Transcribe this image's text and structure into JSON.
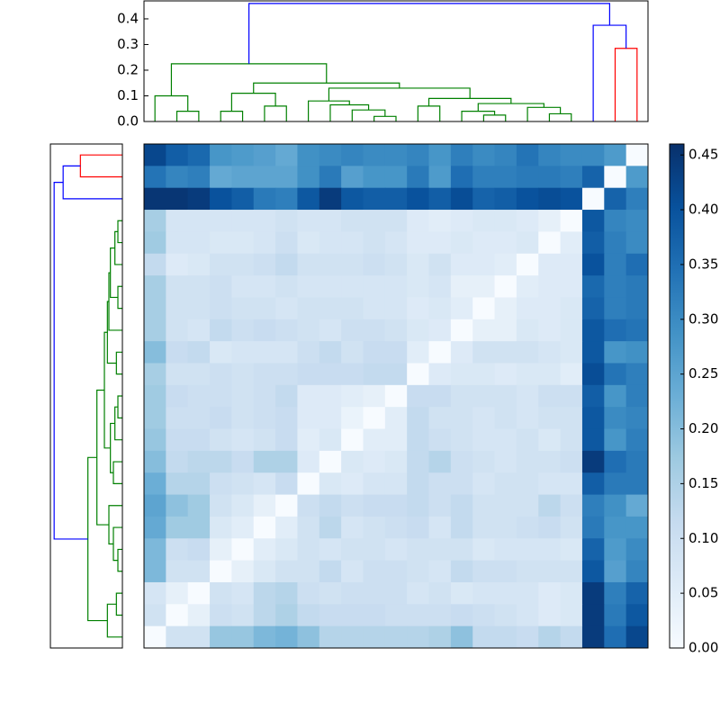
{
  "chart_data": [
    {
      "type": "dendrogram",
      "orientation": "top",
      "linkage": [
        [
          1,
          2,
          0.04
        ],
        [
          0,
          23,
          0.1
        ],
        [
          3,
          4,
          0.04
        ],
        [
          5,
          6,
          0.06
        ],
        [
          25,
          26,
          0.11
        ],
        [
          10,
          11,
          0.02
        ],
        [
          9,
          28,
          0.045
        ],
        [
          8,
          29,
          0.065
        ],
        [
          7,
          30,
          0.08
        ],
        [
          12,
          13,
          0.06
        ],
        [
          15,
          16,
          0.025
        ],
        [
          14,
          33,
          0.04
        ],
        [
          18,
          19,
          0.03
        ],
        [
          17,
          35,
          0.055
        ],
        [
          34,
          36,
          0.07
        ],
        [
          32,
          37,
          0.09
        ],
        [
          31,
          38,
          0.13
        ],
        [
          27,
          39,
          0.15
        ],
        [
          24,
          40,
          0.225
        ],
        [
          21,
          22,
          0.285
        ],
        [
          20,
          42,
          0.375
        ],
        [
          41,
          43,
          0.46
        ]
      ],
      "link_colors": [
        "#008000",
        "#008000",
        "#008000",
        "#008000",
        "#008000",
        "#008000",
        "#008000",
        "#008000",
        "#008000",
        "#008000",
        "#008000",
        "#008000",
        "#008000",
        "#008000",
        "#008000",
        "#008000",
        "#008000",
        "#008000",
        "#008000",
        "#ff0000",
        "#0000ff",
        "#0000ff"
      ],
      "ylim": [
        0,
        0.47
      ],
      "yticks": [
        {
          "value": 0,
          "label": "0.0"
        },
        0.1,
        0.2,
        0.3,
        0.4
      ]
    },
    {
      "type": "dendrogram",
      "orientation": "left",
      "linkage": [
        [
          3,
          4,
          0.03
        ],
        [
          5,
          23,
          0.05
        ],
        [
          6,
          7,
          0.03
        ],
        [
          24,
          25,
          0.08
        ],
        [
          8,
          26,
          0.09
        ],
        [
          9,
          10,
          0.04
        ],
        [
          27,
          28,
          0.1
        ],
        [
          11,
          12,
          0.03
        ],
        [
          13,
          30,
          0.05
        ],
        [
          14,
          15,
          0.06
        ],
        [
          31,
          32,
          0.08
        ],
        [
          29,
          33,
          0.12
        ],
        [
          18,
          19,
          0.03
        ],
        [
          17,
          35,
          0.06
        ],
        [
          16,
          36,
          0.09
        ],
        [
          34,
          37,
          0.17
        ],
        [
          20,
          21,
          0.04
        ],
        [
          39,
          22,
          0.1
        ],
        [
          38,
          40,
          0.23
        ],
        [
          0,
          1,
          0.28
        ],
        [
          42,
          2,
          0.395
        ],
        [
          43,
          41,
          0.455
        ]
      ],
      "link_colors": [
        "#008000",
        "#008000",
        "#008000",
        "#008000",
        "#008000",
        "#008000",
        "#008000",
        "#008000",
        "#008000",
        "#008000",
        "#008000",
        "#008000",
        "#008000",
        "#008000",
        "#008000",
        "#008000",
        "#008000",
        "#008000",
        "#008000",
        "#ff0000",
        "#0000ff",
        "#0000ff"
      ],
      "xlim": [
        0.48,
        0
      ]
    },
    {
      "type": "heatmap",
      "colormap": "Blues",
      "clim": [
        0,
        0.46
      ],
      "colorbar_ticks": [
        {
          "value": 0,
          "label": "0.00"
        },
        0.05,
        {
          "value": 0.1,
          "label": "0.10"
        },
        0.15,
        {
          "value": 0.2,
          "label": "0.20"
        },
        0.25,
        {
          "value": 0.3,
          "label": "0.30"
        },
        0.35,
        {
          "value": 0.4,
          "label": "0.40"
        },
        0.45
      ],
      "values": [
        [
          0.42,
          0.38,
          0.36,
          0.28,
          0.27,
          0.26,
          0.24,
          0.29,
          0.3,
          0.31,
          0.3,
          0.3,
          0.31,
          0.28,
          0.32,
          0.3,
          0.31,
          0.34,
          0.31,
          0.3,
          0.3,
          0.27,
          0
        ],
        [
          0.34,
          0.31,
          0.32,
          0.24,
          0.25,
          0.25,
          0.25,
          0.29,
          0.33,
          0.26,
          0.28,
          0.28,
          0.33,
          0.27,
          0.35,
          0.32,
          0.32,
          0.33,
          0.33,
          0.32,
          0.37,
          0,
          0.27
        ],
        [
          0.45,
          0.45,
          0.44,
          0.4,
          0.38,
          0.33,
          0.32,
          0.39,
          0.44,
          0.39,
          0.38,
          0.38,
          0.4,
          0.38,
          0.41,
          0.37,
          0.38,
          0.4,
          0.41,
          0.4,
          0,
          0.37,
          0.32
        ],
        [
          0.16,
          0.08,
          0.08,
          0.08,
          0.08,
          0.08,
          0.09,
          0.08,
          0.08,
          0.09,
          0.09,
          0.09,
          0.06,
          0.05,
          0.06,
          0.07,
          0.07,
          0.06,
          0.04,
          0,
          0.39,
          0.31,
          0.3
        ],
        [
          0.17,
          0.08,
          0.08,
          0.07,
          0.07,
          0.08,
          0.1,
          0.07,
          0.08,
          0.08,
          0.09,
          0.08,
          0.06,
          0.06,
          0.07,
          0.06,
          0.06,
          0.07,
          0,
          0.05,
          0.38,
          0.32,
          0.3
        ],
        [
          0.12,
          0.06,
          0.07,
          0.09,
          0.09,
          0.1,
          0.12,
          0.09,
          0.09,
          0.09,
          0.1,
          0.09,
          0.07,
          0.09,
          0.06,
          0.06,
          0.05,
          0,
          0.06,
          0.06,
          0.4,
          0.32,
          0.35
        ],
        [
          0.16,
          0.09,
          0.09,
          0.1,
          0.08,
          0.08,
          0.09,
          0.08,
          0.08,
          0.08,
          0.08,
          0.08,
          0.07,
          0.08,
          0.04,
          0.04,
          0,
          0.05,
          0.06,
          0.06,
          0.36,
          0.32,
          0.33
        ],
        [
          0.16,
          0.09,
          0.09,
          0.1,
          0.09,
          0.09,
          0.08,
          0.09,
          0.09,
          0.09,
          0.08,
          0.08,
          0.06,
          0.07,
          0.05,
          0,
          0.04,
          0.06,
          0.06,
          0.07,
          0.37,
          0.32,
          0.33
        ],
        [
          0.16,
          0.09,
          0.08,
          0.12,
          0.1,
          0.11,
          0.1,
          0.09,
          0.08,
          0.1,
          0.1,
          0.09,
          0.07,
          0.06,
          0,
          0.04,
          0.04,
          0.07,
          0.06,
          0.07,
          0.39,
          0.35,
          0.34
        ],
        [
          0.2,
          0.11,
          0.12,
          0.07,
          0.08,
          0.08,
          0.08,
          0.1,
          0.12,
          0.09,
          0.11,
          0.11,
          0.05,
          0,
          0.06,
          0.09,
          0.09,
          0.09,
          0.08,
          0.07,
          0.39,
          0.28,
          0.29
        ],
        [
          0.16,
          0.09,
          0.09,
          0.1,
          0.09,
          0.1,
          0.1,
          0.11,
          0.11,
          0.11,
          0.12,
          0.12,
          0,
          0.06,
          0.07,
          0.07,
          0.06,
          0.07,
          0.07,
          0.05,
          0.41,
          0.34,
          0.32
        ],
        [
          0.17,
          0.11,
          0.1,
          0.1,
          0.09,
          0.1,
          0.12,
          0.06,
          0.06,
          0.05,
          0.04,
          0,
          0.11,
          0.11,
          0.09,
          0.09,
          0.09,
          0.08,
          0.1,
          0.1,
          0.38,
          0.28,
          0.32
        ],
        [
          0.17,
          0.1,
          0.1,
          0.11,
          0.09,
          0.1,
          0.11,
          0.06,
          0.06,
          0.03,
          0,
          0.05,
          0.12,
          0.09,
          0.09,
          0.08,
          0.09,
          0.08,
          0.09,
          0.09,
          0.39,
          0.3,
          0.31
        ],
        [
          0.18,
          0.11,
          0.11,
          0.09,
          0.08,
          0.09,
          0.11,
          0.05,
          0.07,
          0,
          0.05,
          0.05,
          0.12,
          0.1,
          0.09,
          0.08,
          0.08,
          0.09,
          0.07,
          0.09,
          0.39,
          0.28,
          0.32
        ],
        [
          0.2,
          0.12,
          0.13,
          0.13,
          0.11,
          0.15,
          0.15,
          0.06,
          0,
          0.07,
          0.06,
          0.07,
          0.12,
          0.14,
          0.1,
          0.09,
          0.08,
          0.09,
          0.09,
          0.1,
          0.44,
          0.35,
          0.33
        ],
        [
          0.23,
          0.14,
          0.14,
          0.1,
          0.09,
          0.08,
          0.11,
          0,
          0.07,
          0.06,
          0.08,
          0.08,
          0.12,
          0.1,
          0.1,
          0.08,
          0.09,
          0.09,
          0.08,
          0.08,
          0.38,
          0.33,
          0.33
        ],
        [
          0.25,
          0.19,
          0.17,
          0.09,
          0.07,
          0.04,
          0,
          0.1,
          0.12,
          0.1,
          0.11,
          0.11,
          0.12,
          0.1,
          0.12,
          0.09,
          0.09,
          0.09,
          0.13,
          0.1,
          0.32,
          0.29,
          0.24
        ],
        [
          0.24,
          0.17,
          0.17,
          0.07,
          0.05,
          0,
          0.05,
          0.09,
          0.13,
          0.08,
          0.09,
          0.1,
          0.11,
          0.08,
          0.12,
          0.09,
          0.09,
          0.1,
          0.11,
          0.09,
          0.33,
          0.28,
          0.28
        ],
        [
          0.21,
          0.1,
          0.11,
          0.04,
          0,
          0.05,
          0.07,
          0.09,
          0.08,
          0.09,
          0.09,
          0.08,
          0.09,
          0.09,
          0.09,
          0.07,
          0.08,
          0.08,
          0.08,
          0.07,
          0.37,
          0.27,
          0.3
        ],
        [
          0.21,
          0.09,
          0.09,
          0,
          0.04,
          0.07,
          0.09,
          0.09,
          0.12,
          0.08,
          0.1,
          0.1,
          0.09,
          0.08,
          0.12,
          0.1,
          0.1,
          0.09,
          0.09,
          0.09,
          0.39,
          0.26,
          0.31
        ],
        [
          0.08,
          0.04,
          0,
          0.09,
          0.08,
          0.13,
          0.14,
          0.1,
          0.09,
          0.1,
          0.1,
          0.1,
          0.08,
          0.09,
          0.07,
          0.08,
          0.08,
          0.08,
          0.06,
          0.07,
          0.44,
          0.32,
          0.37
        ],
        [
          0.09,
          0,
          0.04,
          0.1,
          0.09,
          0.13,
          0.15,
          0.12,
          0.11,
          0.11,
          0.11,
          0.1,
          0.1,
          0.1,
          0.11,
          0.1,
          0.09,
          0.08,
          0.06,
          0.07,
          0.44,
          0.33,
          0.39
        ],
        [
          0,
          0.09,
          0.09,
          0.18,
          0.18,
          0.21,
          0.22,
          0.19,
          0.14,
          0.14,
          0.14,
          0.14,
          0.14,
          0.15,
          0.19,
          0.12,
          0.12,
          0.11,
          0.14,
          0.12,
          0.44,
          0.35,
          0.42
        ]
      ]
    }
  ]
}
